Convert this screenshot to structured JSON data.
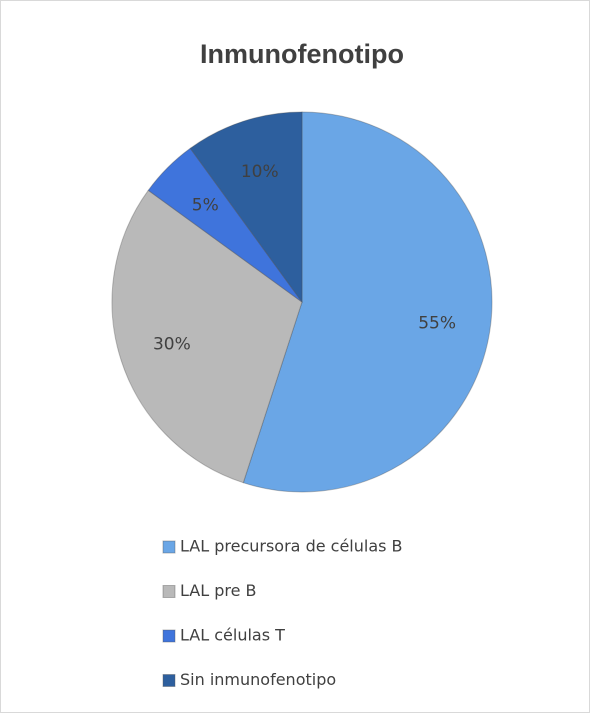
{
  "chart_data": {
    "type": "pie",
    "title": "Inmunofenotipo",
    "categories": [
      "LAL precursora de células B",
      "LAL pre B",
      "LAL células T",
      "Sin inmunofenotipo"
    ],
    "values": [
      55,
      30,
      5,
      10
    ],
    "value_labels": [
      "55%",
      "30%",
      "5%",
      "10%"
    ],
    "colors": [
      "#6aa6e6",
      "#b9b9b9",
      "#3f74dc",
      "#2d5f9e"
    ],
    "legend": "bottom"
  }
}
